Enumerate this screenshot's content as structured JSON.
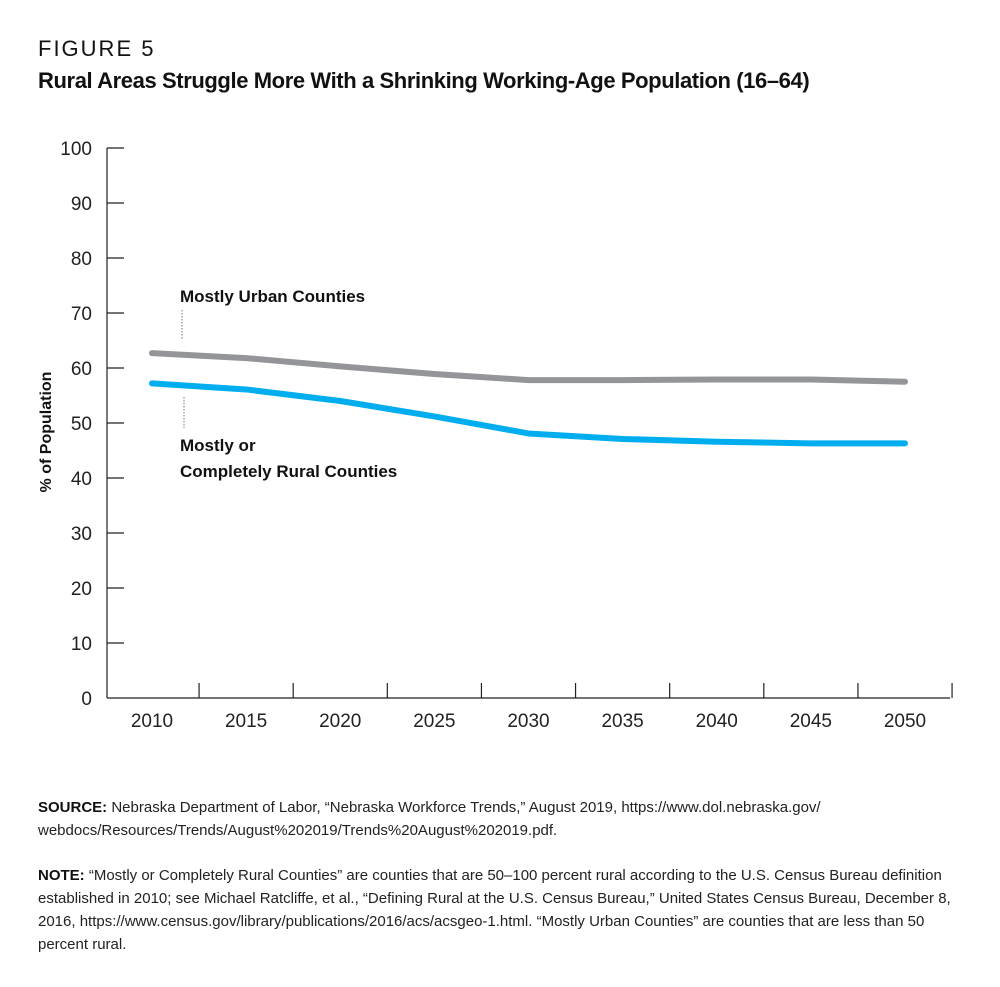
{
  "figure_label": "FIGURE 5",
  "chart_data": {
    "type": "line",
    "title": "Rural Areas Struggle More With a Shrinking Working-Age Population (16–64)",
    "xlabel": "",
    "ylabel": "% of Population",
    "x": [
      2010,
      2015,
      2020,
      2025,
      2030,
      2035,
      2040,
      2045,
      2050
    ],
    "x_tick_labels": [
      "2010",
      "2015",
      "2020",
      "2025",
      "2030",
      "2035",
      "2040",
      "2045",
      "2050"
    ],
    "y_tick_labels": [
      "0",
      "10",
      "20",
      "30",
      "40",
      "50",
      "60",
      "70",
      "80",
      "90",
      "100"
    ],
    "ylim": [
      0,
      100
    ],
    "grid": false,
    "series": [
      {
        "name": "Mostly Urban Counties",
        "color": "#939598",
        "values": [
          62.7,
          61.8,
          60.3,
          58.9,
          57.8,
          57.8,
          57.9,
          57.9,
          57.5
        ]
      },
      {
        "name": "Mostly or Completely Rural Counties",
        "name_lines": [
          "Mostly or",
          "Completely Rural Counties"
        ],
        "color": "#00aeef",
        "values": [
          57.2,
          56.1,
          54.0,
          51.2,
          48.1,
          47.1,
          46.6,
          46.3,
          46.3
        ]
      }
    ]
  },
  "source": {
    "label": "SOURCE:",
    "text": "Nebraska Department of Labor, “Nebraska Workforce Trends,” August 2019, https://www.dol.nebraska.gov/ webdocs/Resources/Trends/August%202019/Trends%20August%202019.pdf."
  },
  "note": {
    "label": "NOTE:",
    "text": "“Mostly or Completely Rural Counties” are counties that are 50–100 percent rural according to the U.S. Census Bureau definition established in 2010; see Michael Ratcliffe, et al., “Defining Rural at the U.S. Census Bureau,” United States Census Bureau, December 8, 2016, https://www.census.gov/library/publications/2016/acs/acsgeo-1.html. “Mostly Urban Counties” are counties that are less than 50 percent rural."
  }
}
